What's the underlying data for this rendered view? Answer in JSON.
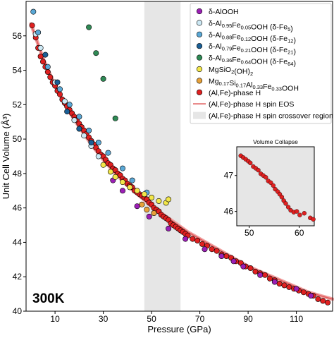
{
  "chart_data": [
    {
      "type": "scatter",
      "title": "",
      "xlabel": "Pressure (GPa)",
      "ylabel": "Unit Cell Volume (Å³)",
      "xlim": [
        -2,
        125
      ],
      "ylim": [
        40,
        58
      ],
      "x_ticks": [
        10,
        30,
        50,
        70,
        90,
        110
      ],
      "y_ticks": [
        40,
        42,
        44,
        46,
        48,
        50,
        52,
        54,
        56
      ],
      "grid": false,
      "legend_placement": "top-right",
      "annotation": "300K",
      "shaded_region": {
        "label": "(Al,Fe)-phase H spin crossover region",
        "x": [
          47,
          62
        ],
        "color": "#e6e6e6"
      },
      "eos_curve": {
        "label": "(Al,Fe)-phase H spin EOS",
        "color": "#e05a5a",
        "x": [
          0,
          5,
          10,
          15,
          20,
          25,
          30,
          35,
          40,
          45,
          50,
          55,
          60,
          65,
          70,
          75,
          80,
          85,
          90,
          95,
          100,
          105,
          110,
          115,
          120,
          125
        ],
        "y": [
          56.7,
          54.7,
          53.1,
          51.8,
          50.7,
          49.7,
          48.8,
          48.0,
          47.3,
          46.7,
          46.1,
          45.6,
          45.1,
          44.6,
          44.2,
          43.8,
          43.4,
          43.0,
          42.6,
          42.3,
          42.0,
          41.7,
          41.4,
          41.1,
          40.9,
          40.7
        ]
      },
      "series": [
        {
          "name": "δ-AlOOH",
          "color": "#9b1fb5",
          "points": [
            [
              34,
              47.6
            ],
            [
              38,
              47.0
            ],
            [
              44,
              46.1
            ],
            [
              49,
              45.5
            ],
            [
              57,
              44.8
            ],
            [
              64,
              44.2
            ],
            [
              72,
              43.6
            ],
            [
              79,
              43.2
            ],
            [
              84,
              42.9
            ],
            [
              88,
              42.6
            ],
            [
              95,
              42.1
            ],
            [
              101,
              41.7
            ],
            [
              110,
              41.3
            ],
            [
              116,
              40.9
            ]
          ]
        },
        {
          "name": "δ-Al0.95Fe0.05OOH (δ-Fe5)",
          "color": "#cde9f5",
          "points": [
            [
              2,
              56.1
            ],
            [
              4,
              55.3
            ],
            [
              10,
              53.3
            ],
            [
              14,
              52.2
            ],
            [
              18,
              51.1
            ],
            [
              22,
              50.2
            ],
            [
              25,
              49.6
            ],
            [
              28,
              49.0
            ]
          ]
        },
        {
          "name": "δ-Al0.88Fe0.12OOH (δ-Fe12)",
          "color": "#5aa8d6",
          "points": [
            [
              1,
              57.4
            ],
            [
              3,
              56.2
            ],
            [
              7,
              54.2
            ],
            [
              12,
              52.9
            ],
            [
              16,
              52.0
            ],
            [
              20,
              51.3
            ],
            [
              24,
              50.5
            ],
            [
              28,
              49.8
            ],
            [
              32,
              49.2
            ],
            [
              38,
              48.3
            ],
            [
              42,
              47.6
            ],
            [
              48,
              46.9
            ]
          ]
        },
        {
          "name": "δ-Al0.79Fe0.21OOH (δ-Fe21)",
          "color": "#1a5f96",
          "points": [
            [
              6,
              54.9
            ],
            [
              11,
              53.3
            ],
            [
              15,
              51.6
            ],
            [
              20,
              50.6
            ],
            [
              25,
              49.8
            ]
          ]
        },
        {
          "name": "δ-Al0.36Fe0.64OOH (δ-Fe64)",
          "color": "#2f8a55",
          "points": [
            [
              24,
              56.5
            ],
            [
              27,
              55.0
            ],
            [
              30,
              53.5
            ],
            [
              35,
              51.2
            ]
          ]
        },
        {
          "name": "MgSiO2(OH)2",
          "color": "#f2e649",
          "points": [
            [
              30,
              48.5
            ],
            [
              33,
              48.1
            ],
            [
              35,
              47.8
            ],
            [
              38,
              47.5
            ],
            [
              41,
              47.2
            ],
            [
              44,
              47.0
            ],
            [
              47,
              46.8
            ],
            [
              50,
              46.6
            ],
            [
              53,
              46.4
            ],
            [
              56,
              46.3
            ],
            [
              57,
              46.5
            ]
          ]
        },
        {
          "name": "Mg0.17Si0.17Al0.33Fe0.33OOH",
          "color": "#e8a23a",
          "points": [
            [
              46,
              46.2
            ],
            [
              48,
              45.9
            ],
            [
              51,
              45.7
            ]
          ]
        },
        {
          "name": "(Al,Fe)-phase H",
          "color": "#e02020",
          "points": [
            [
              0.5,
              56.6
            ],
            [
              2,
              55.9
            ],
            [
              3,
              55.3
            ],
            [
              4,
              54.8
            ],
            [
              5,
              54.5
            ],
            [
              6,
              54.2
            ],
            [
              7,
              53.9
            ],
            [
              8,
              53.6
            ],
            [
              9,
              53.3
            ],
            [
              10,
              53.1
            ],
            [
              11,
              52.8
            ],
            [
              12,
              52.6
            ],
            [
              13,
              52.3
            ],
            [
              14,
              52.1
            ],
            [
              15,
              51.9
            ],
            [
              16,
              51.7
            ],
            [
              17,
              51.5
            ],
            [
              18,
              51.3
            ],
            [
              19,
              51.1
            ],
            [
              20,
              50.9
            ],
            [
              21,
              50.7
            ],
            [
              22,
              50.5
            ],
            [
              23,
              50.3
            ],
            [
              24,
              50.1
            ],
            [
              25,
              49.9
            ],
            [
              26,
              49.7
            ],
            [
              27,
              49.5
            ],
            [
              28,
              49.3
            ],
            [
              29,
              49.1
            ],
            [
              30,
              49.0
            ],
            [
              31,
              48.8
            ],
            [
              32,
              48.6
            ],
            [
              33,
              48.5
            ],
            [
              34,
              48.3
            ],
            [
              35,
              48.2
            ],
            [
              36,
              48.0
            ],
            [
              37,
              47.9
            ],
            [
              38,
              47.7
            ],
            [
              39,
              47.6
            ],
            [
              40,
              47.4
            ],
            [
              41,
              47.3
            ],
            [
              42,
              47.2
            ],
            [
              43,
              47.0
            ],
            [
              44,
              46.9
            ],
            [
              45,
              46.8
            ],
            [
              46,
              46.7
            ],
            [
              47,
              46.6
            ],
            [
              48,
              46.5
            ],
            [
              49,
              46.3
            ],
            [
              50,
              46.2
            ],
            [
              51,
              46.0
            ],
            [
              52,
              45.9
            ],
            [
              53,
              45.8
            ],
            [
              54,
              45.6
            ],
            [
              55,
              45.5
            ],
            [
              56,
              45.4
            ],
            [
              57,
              45.3
            ],
            [
              58,
              45.1
            ],
            [
              59,
              45.0
            ],
            [
              60,
              44.9
            ],
            [
              61,
              44.8
            ],
            [
              62,
              44.7
            ],
            [
              63,
              44.6
            ],
            [
              64,
              44.5
            ],
            [
              65,
              44.4
            ],
            [
              67,
              44.2
            ],
            [
              69,
              44.1
            ],
            [
              71,
              43.9
            ],
            [
              73,
              43.8
            ],
            [
              75,
              43.6
            ],
            [
              77,
              43.5
            ],
            [
              79,
              43.3
            ],
            [
              81,
              43.2
            ],
            [
              83,
              43.1
            ],
            [
              85,
              42.9
            ],
            [
              87,
              42.8
            ],
            [
              89,
              42.6
            ],
            [
              91,
              42.5
            ],
            [
              93,
              42.3
            ],
            [
              95,
              42.2
            ],
            [
              97,
              42.1
            ],
            [
              99,
              41.9
            ],
            [
              101,
              41.8
            ],
            [
              103,
              41.6
            ],
            [
              105,
              41.5
            ],
            [
              107,
              41.4
            ],
            [
              109,
              41.3
            ],
            [
              111,
              41.2
            ],
            [
              113,
              41.1
            ],
            [
              115,
              41.0
            ],
            [
              117,
              40.9
            ],
            [
              119,
              40.7
            ],
            [
              121,
              40.6
            ],
            [
              123,
              40.5
            ]
          ]
        }
      ]
    },
    {
      "type": "scatter",
      "title": "Volume Collapse",
      "xlim": [
        47.5,
        63
      ],
      "ylim": [
        45.6,
        47.8
      ],
      "x_ticks": [
        50,
        60
      ],
      "y_ticks": [
        46,
        47
      ],
      "background": "#e6e6e6",
      "series": [
        {
          "name": "(Al,Fe)-phase H",
          "color": "#e02020",
          "points": [
            [
              48.3,
              47.55
            ],
            [
              48.8,
              47.5
            ],
            [
              49.3,
              47.45
            ],
            [
              49.8,
              47.4
            ],
            [
              50.2,
              47.35
            ],
            [
              50.8,
              47.25
            ],
            [
              51.3,
              47.2
            ],
            [
              51.8,
              47.15
            ],
            [
              52.3,
              47.05
            ],
            [
              52.8,
              47.0
            ],
            [
              53.3,
              46.95
            ],
            [
              53.8,
              46.85
            ],
            [
              54.3,
              46.8
            ],
            [
              54.8,
              46.72
            ],
            [
              55.2,
              46.62
            ],
            [
              55.7,
              46.55
            ],
            [
              56.1,
              46.48
            ],
            [
              56.5,
              46.4
            ],
            [
              56.9,
              46.3
            ],
            [
              57.3,
              46.22
            ],
            [
              57.8,
              46.12
            ],
            [
              58.3,
              46.03
            ],
            [
              58.9,
              45.98
            ],
            [
              59.5,
              46.0
            ],
            [
              60.1,
              45.9
            ],
            [
              61.0,
              45.95
            ],
            [
              62.2,
              45.82
            ],
            [
              62.8,
              45.78
            ]
          ]
        }
      ]
    }
  ]
}
